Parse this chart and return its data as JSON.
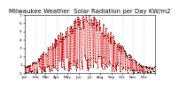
{
  "title": "Milwaukee Weather  Solar Radiation per Day KW/m2",
  "ylim": [
    0,
    7
  ],
  "xlim": [
    0,
    365
  ],
  "background_color": "#ffffff",
  "line_color": "#dd0000",
  "dot_color": "#000000",
  "grid_color": "#bbbbbb",
  "title_fontsize": 5.0,
  "tick_fontsize": 3.2,
  "month_ticks": [
    0,
    31,
    59,
    90,
    120,
    151,
    181,
    212,
    243,
    273,
    304,
    334,
    365
  ],
  "month_labels": [
    "Jan",
    "Feb",
    "Mar",
    "Apr",
    "May",
    "Jun",
    "Jul",
    "Aug",
    "Sep",
    "Oct",
    "Nov",
    "Dec",
    ""
  ]
}
